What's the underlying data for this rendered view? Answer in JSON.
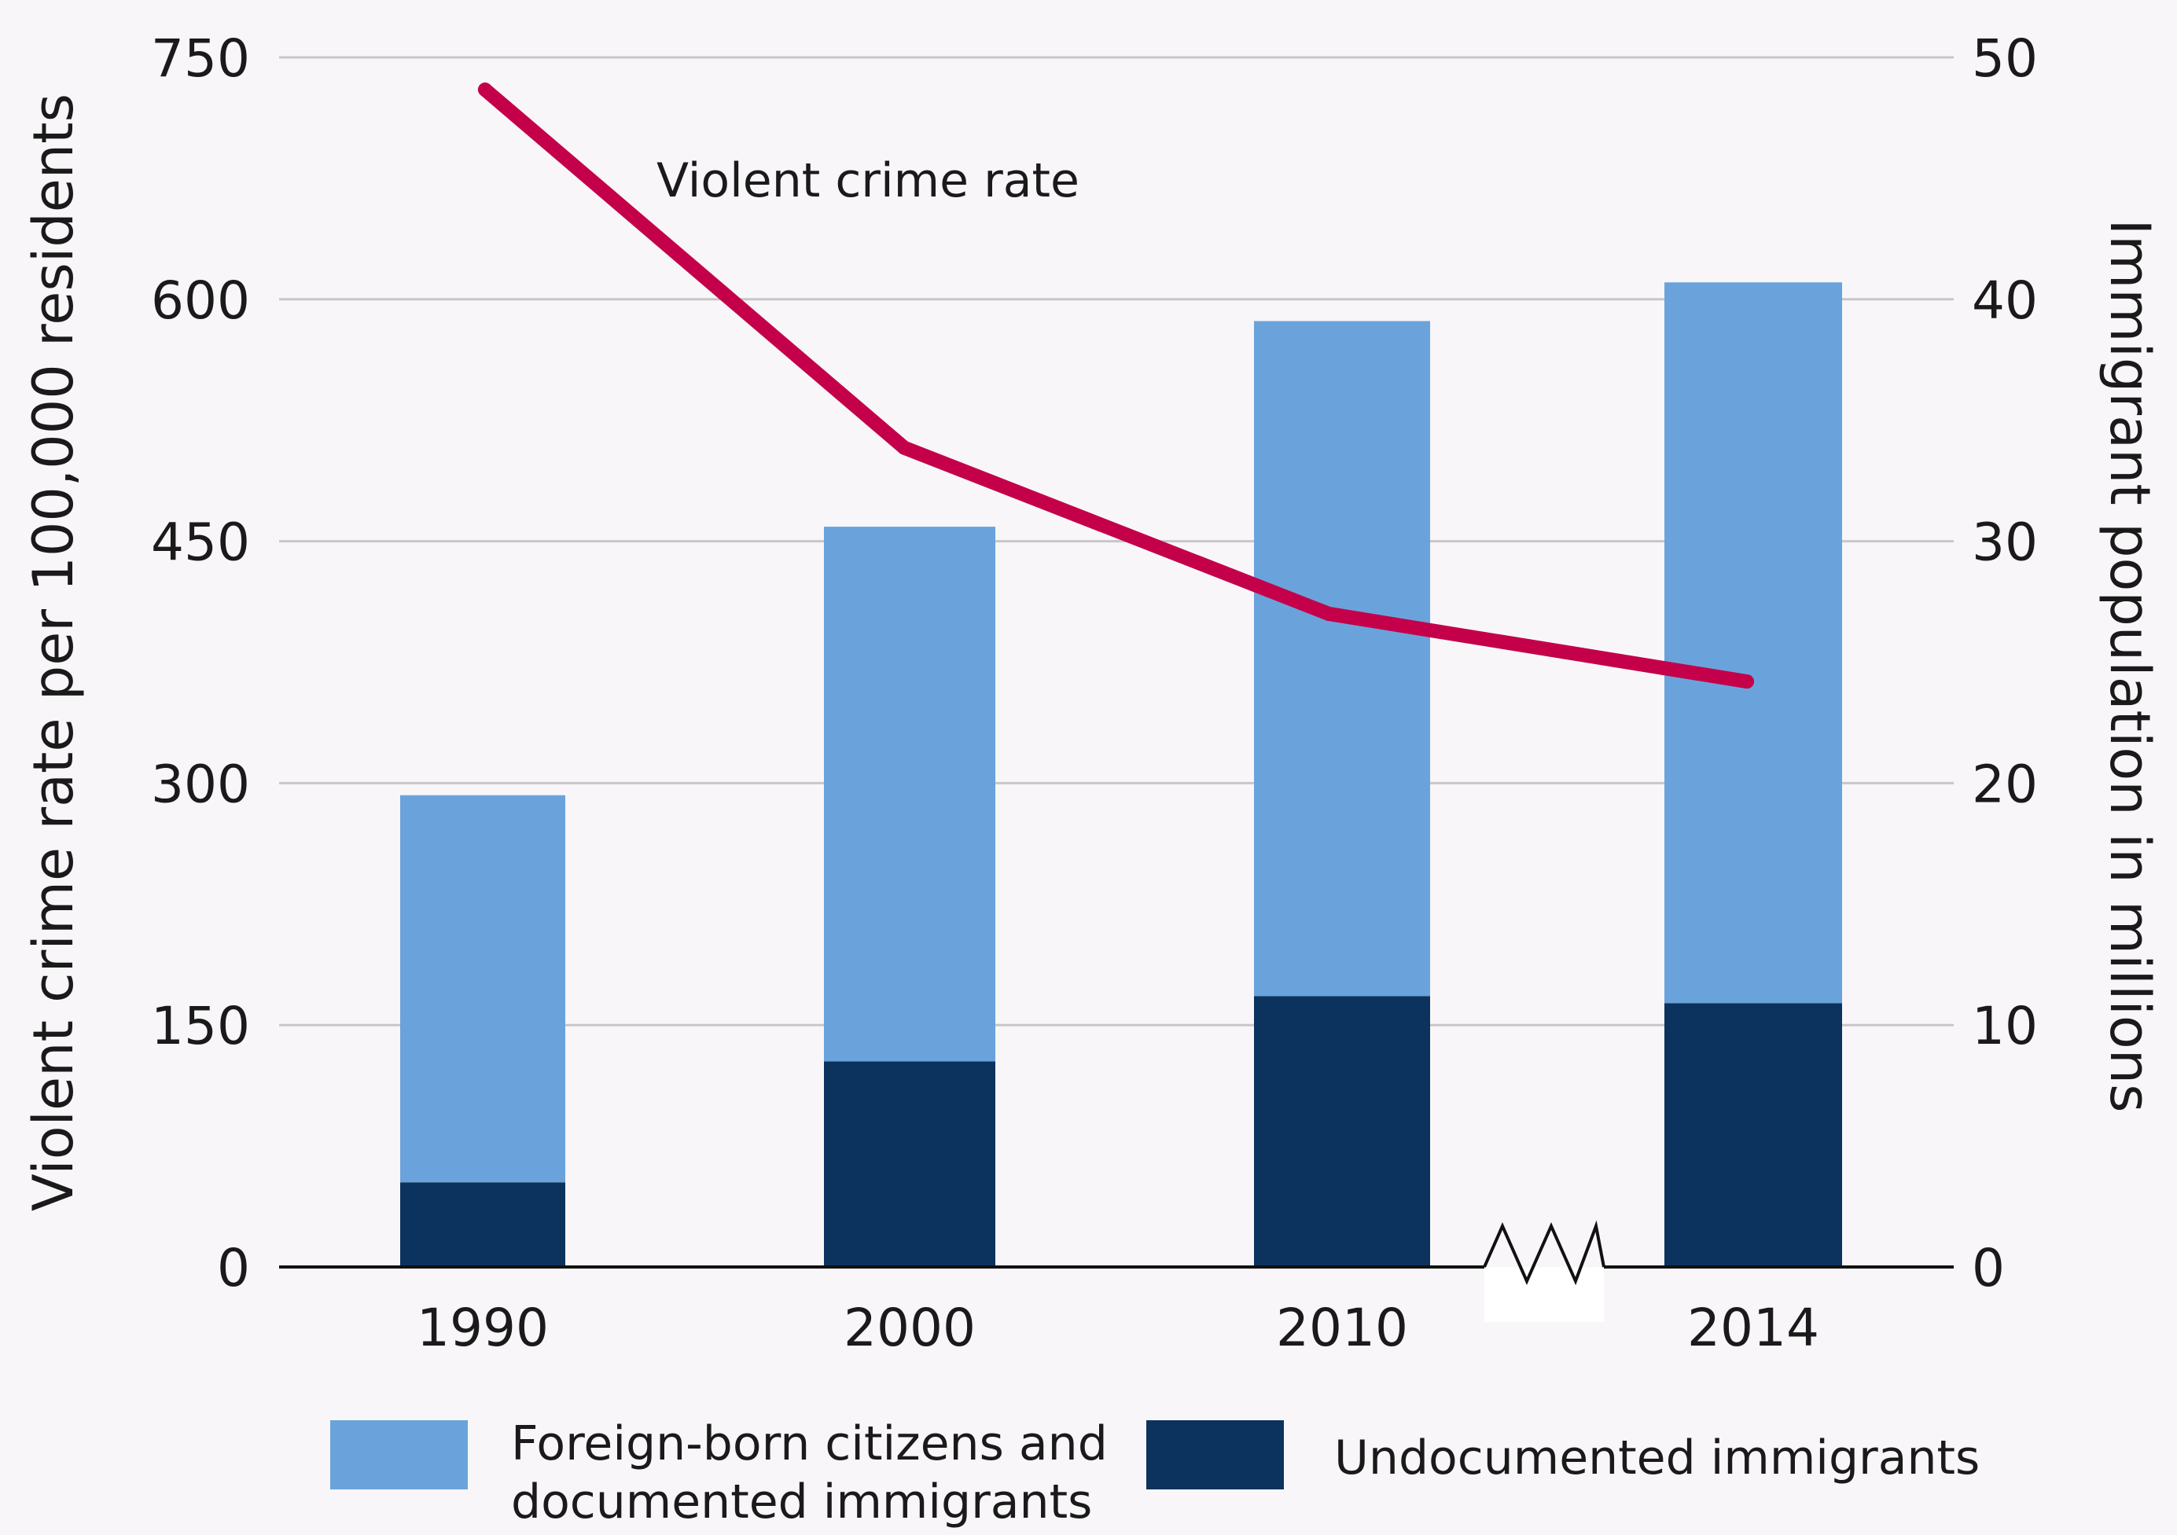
{
  "chart_data": {
    "type": "bar",
    "stacked": true,
    "categories": [
      "1990",
      "2000",
      "2010",
      "2014"
    ],
    "series": [
      {
        "name": "Undocumented immigrants",
        "axis": "right",
        "color": "#0b335e",
        "values": [
          3.5,
          8.5,
          11.2,
          10.9
        ]
      },
      {
        "name": "Foreign-born citizens and documented immigrants",
        "axis": "right",
        "color": "#6aa3db",
        "values": [
          16.0,
          22.1,
          27.9,
          29.8
        ]
      },
      {
        "name": "Violent crime rate",
        "axis": "left",
        "type": "line",
        "color": "#c4004a",
        "values": [
          730,
          508,
          405,
          363
        ]
      }
    ],
    "ylabel_left": "Violent crime rate per 100,000 residents",
    "ylabel_right": "Immigrant population in millions",
    "ylim_left": [
      0,
      750
    ],
    "ylim_right": [
      0,
      50
    ],
    "yticks_left": [
      "0",
      "150",
      "300",
      "450",
      "600",
      "750"
    ],
    "yticks_right": [
      "0",
      "10",
      "20",
      "30",
      "40",
      "50"
    ],
    "line_annotation": "Violent crime rate",
    "legend": [
      {
        "label_lines": [
          "Foreign-born citizens and",
          "documented immigrants"
        ],
        "color": "#6aa3db"
      },
      {
        "label_lines": [
          "Undocumented immigrants"
        ],
        "color": "#0b335e"
      }
    ],
    "legend_position": "bottom",
    "grid": true,
    "axis_break_between": [
      "2010",
      "2014"
    ]
  }
}
